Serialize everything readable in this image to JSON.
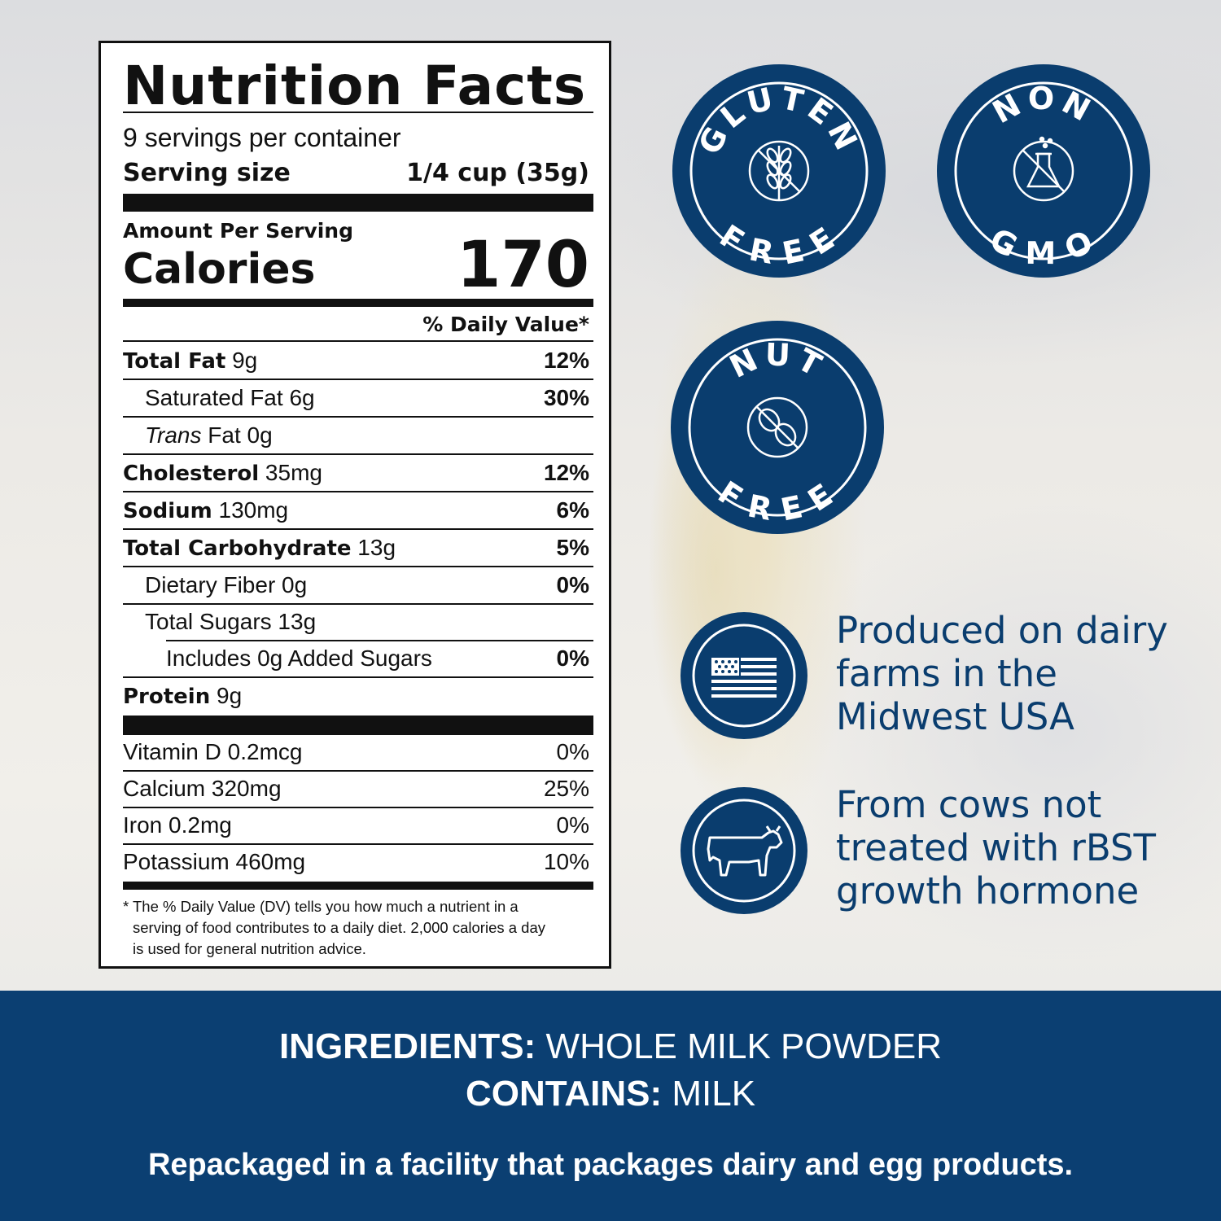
{
  "nutrition": {
    "title": "Nutrition Facts",
    "servings": "9 servings per container",
    "serving_size_label": "Serving size",
    "serving_size_value": "1/4 cup (35g)",
    "amount_per_serving": "Amount Per Serving",
    "calories_label": "Calories",
    "calories_value": "170",
    "dv_header": "% Daily Value*",
    "rows": [
      {
        "name": "Total Fat",
        "amount": "9g",
        "dv": "12%"
      },
      {
        "name": "Saturated Fat",
        "amount": "6g",
        "dv": "30%"
      },
      {
        "name": "Trans",
        "name2": "Fat",
        "amount": "0g",
        "dv": ""
      },
      {
        "name": "Cholesterol",
        "amount": "35mg",
        "dv": "12%"
      },
      {
        "name": "Sodium",
        "amount": "130mg",
        "dv": "6%"
      },
      {
        "name": "Total Carbohydrate",
        "amount": "13g",
        "dv": "5%"
      },
      {
        "name": "Dietary Fiber",
        "amount": "0g",
        "dv": "0%"
      },
      {
        "name": "Total Sugars",
        "amount": "13g",
        "dv": ""
      },
      {
        "name": "Includes 0g Added Sugars",
        "amount": "",
        "dv": "0%"
      },
      {
        "name": "Protein",
        "amount": "9g",
        "dv": ""
      }
    ],
    "vitamins": [
      {
        "name": "Vitamin D 0.2mcg",
        "dv": "0%"
      },
      {
        "name": "Calcium 320mg",
        "dv": "25%"
      },
      {
        "name": "Iron 0.2mg",
        "dv": "0%"
      },
      {
        "name": "Potassium 460mg",
        "dv": "10%"
      }
    ],
    "footnote_1": "* The % Daily Value (DV) tells you how much a nutrient in a",
    "footnote_2": "serving of food contributes to a daily diet. 2,000 calories a day",
    "footnote_3": "is used for general nutrition advice."
  },
  "badges": {
    "gluten_top": "GLUTEN",
    "gluten_bottom": "FREE",
    "gmo_top": "NON",
    "gmo_bottom": "GMO",
    "nut_top": "NUT",
    "nut_bottom": "FREE"
  },
  "claims": {
    "dairy_1": "Produced on dairy",
    "dairy_2": "farms in the",
    "dairy_3": "Midwest USA",
    "cows_1": "From cows not",
    "cows_2": "treated with rBST",
    "cows_3": "growth hormone"
  },
  "footer": {
    "ingredients_label": "INGREDIENTS:",
    "ingredients_value": " WHOLE MILK POWDER",
    "contains_label": "CONTAINS:",
    "contains_value": " MILK",
    "repackaged": "Repackaged in a facility that packages dairy and egg products."
  },
  "colors": {
    "brand_blue": "#0a3d6e",
    "band_blue": "#0b3f72"
  }
}
